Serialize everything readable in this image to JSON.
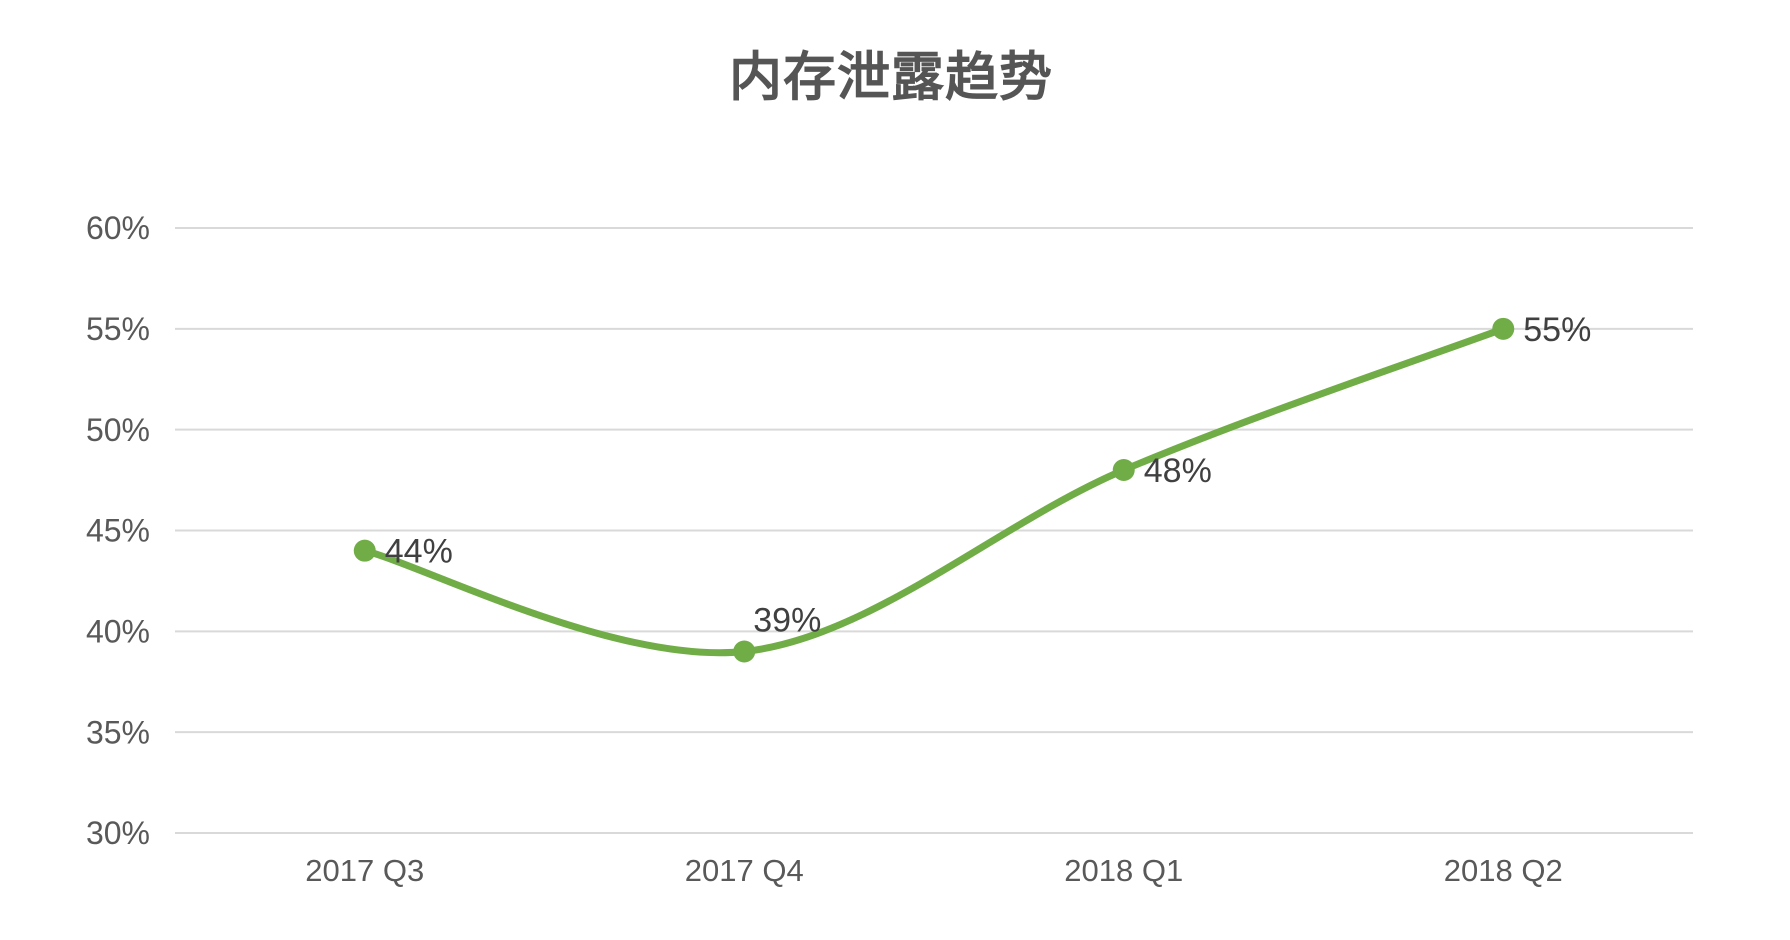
{
  "page": {
    "background": "#ffffff"
  },
  "chart_data": {
    "type": "line",
    "title": "内存泄露趋势",
    "categories": [
      "2017 Q3",
      "2017 Q4",
      "2018 Q1",
      "2018 Q2"
    ],
    "series": [
      {
        "name": "内存泄露趋势",
        "values": [
          44,
          39,
          48,
          55
        ],
        "point_labels": [
          "44%",
          "39%",
          "48%",
          "55%"
        ],
        "point_label_positions": [
          "right",
          "above",
          "right",
          "right"
        ]
      }
    ],
    "xlabel": "",
    "ylabel": "",
    "ylim": [
      30,
      60
    ],
    "y_ticks": [
      60,
      55,
      50,
      45,
      40,
      35,
      30
    ],
    "y_tick_labels": [
      "60%",
      "55%",
      "50%",
      "45%",
      "40%",
      "35%",
      "30%"
    ],
    "grid": true,
    "legend": false,
    "smooth": true,
    "marker": "circle",
    "colors": {
      "line": "#70ad47",
      "marker": "#70ad47",
      "grid": "#d9d9d9",
      "axis_text": "#595959",
      "data_label": "#404040",
      "title": "#555555",
      "background": "#ffffff"
    }
  }
}
